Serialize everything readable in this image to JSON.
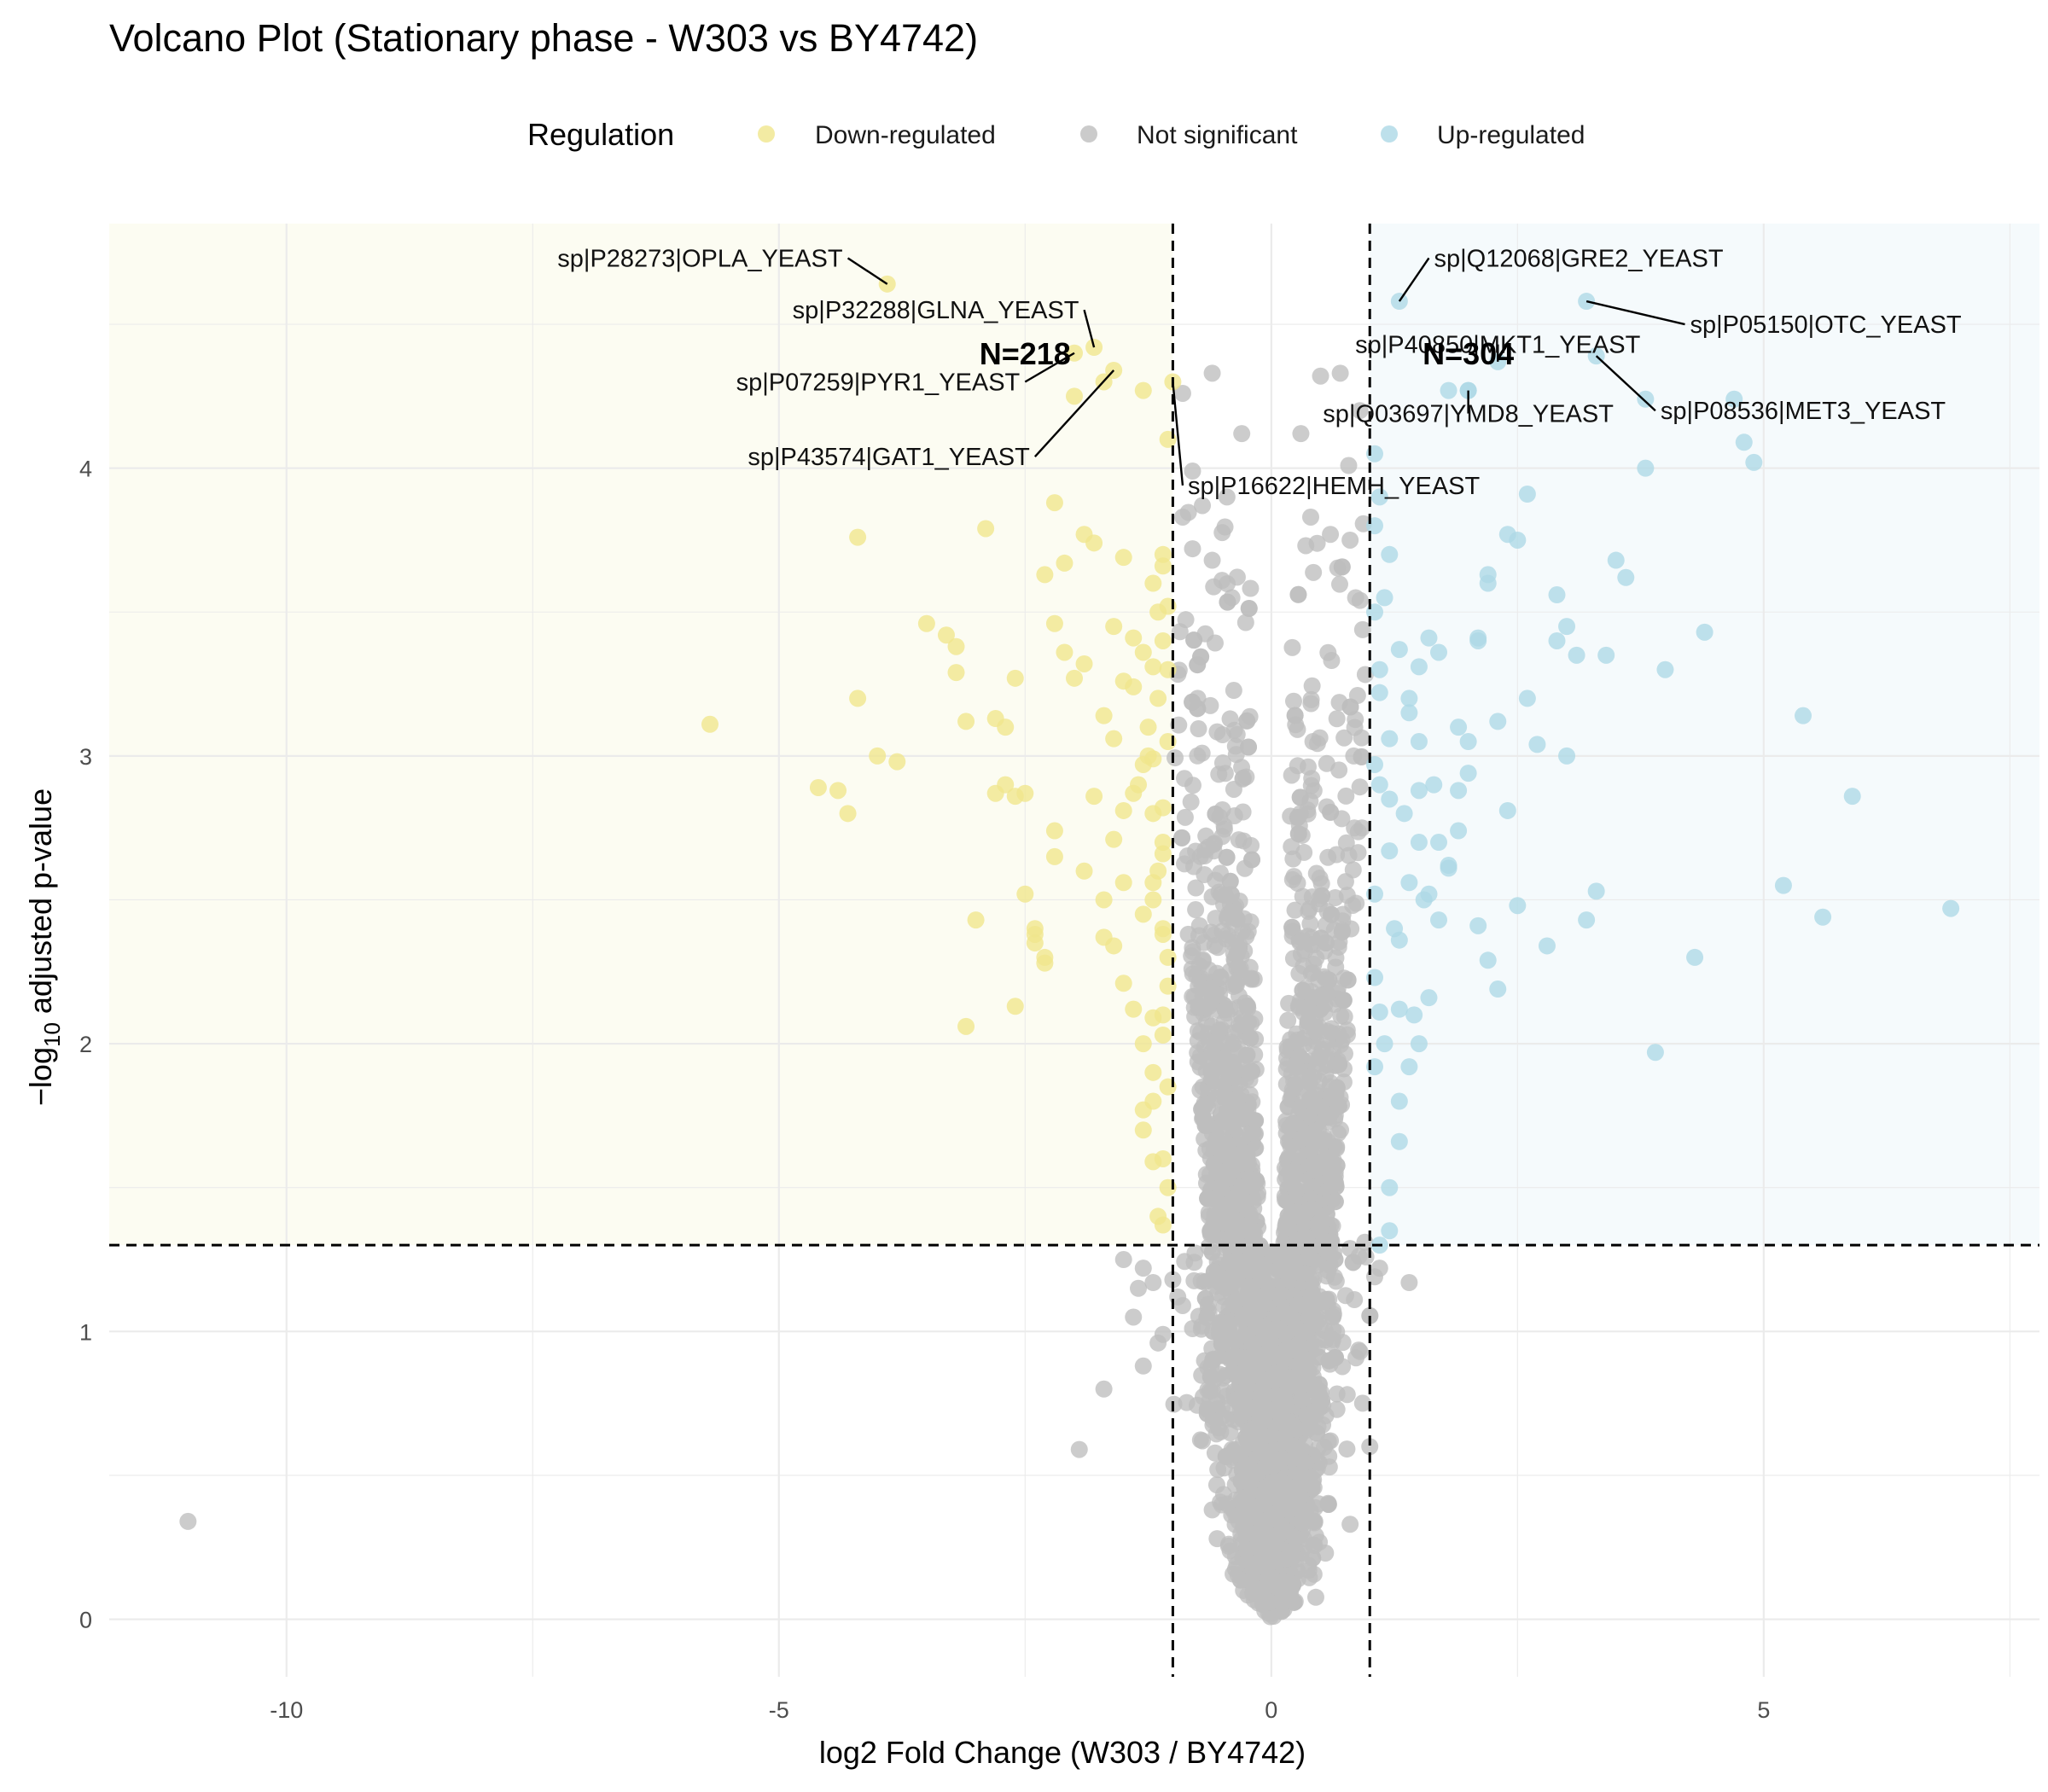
{
  "chart_data": {
    "type": "scatter",
    "title": "Volcano Plot (Stationary phase - W303 vs BY4742)",
    "xlabel": "log2 Fold Change (W303 / BY4742)",
    "ylabel_prefix": "−log",
    "ylabel_sub": "10",
    "ylabel_suffix": " adjusted p-value",
    "xlim": [
      -11.8,
      7.8
    ],
    "ylim": [
      -0.2,
      4.85
    ],
    "x_ticks": [
      -10,
      -5,
      0,
      5
    ],
    "x_tick_labels": [
      "-10",
      "-5",
      "0",
      "5"
    ],
    "y_ticks": [
      0,
      1,
      2,
      3,
      4
    ],
    "y_tick_labels": [
      "0",
      "1",
      "2",
      "3",
      "4"
    ],
    "grid": true,
    "legend": {
      "title": "Regulation",
      "placement": "top",
      "entries": [
        {
          "label": "Down-regulated",
          "color": "#f0e68c"
        },
        {
          "label": "Not significant",
          "color": "#bebebe"
        },
        {
          "label": "Up-regulated",
          "color": "#add8e6"
        }
      ]
    },
    "thresholds": {
      "fc_low": -1,
      "fc_high": 1,
      "padj": 1.3
    },
    "shade_colors": {
      "down": "#fcfcf2",
      "up": "#f5fafc"
    },
    "counts": [
      {
        "label": "N=218",
        "x": -2.5,
        "y": 4.4
      },
      {
        "label": "N=304",
        "x": 2.0,
        "y": 4.4
      }
    ],
    "labels": [
      {
        "text": "sp|P28273|OPLA_YEAST",
        "x": -3.9,
        "y": 4.64,
        "lx": -4.3,
        "ly": 4.73
      },
      {
        "text": "sp|P32288|GLNA_YEAST",
        "x": -1.8,
        "y": 4.42,
        "lx": -1.9,
        "ly": 4.55
      },
      {
        "text": "sp|P07259|PYR1_YEAST",
        "x": -2.0,
        "y": 4.4,
        "lx": -2.5,
        "ly": 4.3
      },
      {
        "text": "sp|P43574|GAT1_YEAST",
        "x": -1.6,
        "y": 4.34,
        "lx": -2.4,
        "ly": 4.04
      },
      {
        "text": "sp|P16622|HEMH_YEAST",
        "x": -1.0,
        "y": 4.3,
        "lx": -0.9,
        "ly": 3.94
      },
      {
        "text": "sp|Q12068|GRE2_YEAST",
        "x": 1.3,
        "y": 4.58,
        "lx": 1.6,
        "ly": 4.73
      },
      {
        "text": "sp|P40850|MKT1_YEAST",
        "x": 2.3,
        "y": 4.37,
        "lx": 2.3,
        "ly": 4.43
      },
      {
        "text": "sp|Q03697|YMD8_YEAST",
        "x": 2.0,
        "y": 4.27,
        "lx": 2.0,
        "ly": 4.19
      },
      {
        "text": "sp|P05150|OTC_YEAST",
        "x": 3.2,
        "y": 4.58,
        "lx": 4.2,
        "ly": 4.5
      },
      {
        "text": "sp|P08536|MET3_YEAST",
        "x": 3.3,
        "y": 4.39,
        "lx": 3.9,
        "ly": 4.2
      }
    ],
    "series": [
      {
        "name": "Down-regulated",
        "color": "#f0e68c",
        "x": [
          -3.9,
          -1.8,
          -2.0,
          -1.6,
          -1.0,
          -5.7,
          -4.6,
          -4.4,
          -4.3,
          -4.2,
          -4.2,
          -4.0,
          -3.8,
          -3.5,
          -3.3,
          -3.2,
          -3.2,
          -3.1,
          -3.1,
          -3.0,
          -2.9,
          -2.8,
          -2.8,
          -2.7,
          -2.7,
          -2.6,
          -2.6,
          -2.5,
          -2.5,
          -2.4,
          -2.4,
          -2.3,
          -2.3,
          -2.2,
          -2.2,
          -2.2,
          -2.1,
          -2.1,
          -2.0,
          -2.0,
          -1.9,
          -1.9,
          -1.8,
          -1.8,
          -1.7,
          -1.7,
          -1.7,
          -1.6,
          -1.6,
          -1.6,
          -1.5,
          -1.5,
          -1.5,
          -1.5,
          -1.4,
          -1.4,
          -1.4,
          -1.3,
          -1.3,
          -1.3,
          -1.3,
          -1.2,
          -1.2,
          -1.2,
          -1.2,
          -1.2,
          -1.1,
          -1.1,
          -1.1,
          -1.1,
          -1.1,
          -1.1,
          -1.05,
          -1.05,
          -1.05,
          -1.05,
          -2.6,
          -2.4,
          -2.3,
          -2.2,
          -1.9,
          -1.7,
          -1.6,
          -1.5,
          -1.4,
          -1.3,
          -1.25,
          -1.2,
          -1.15,
          -1.1,
          -1.05,
          -1.3,
          -1.2,
          -1.1,
          -1.05,
          -1.15,
          -1.35,
          -1.1,
          -1.2,
          -1.05,
          -1.15,
          -1.25,
          -1.1,
          -1.2,
          -1.3,
          -1.1,
          -1.05,
          -1.15,
          -1.2,
          -1.1
        ],
        "y": [
          4.64,
          4.42,
          4.4,
          4.34,
          4.3,
          3.11,
          2.89,
          2.88,
          2.8,
          3.2,
          3.76,
          3.0,
          2.98,
          3.46,
          3.42,
          3.38,
          3.29,
          3.12,
          2.06,
          2.43,
          3.79,
          3.13,
          2.87,
          2.9,
          3.1,
          2.86,
          3.27,
          2.87,
          2.52,
          2.35,
          2.4,
          2.3,
          2.28,
          2.74,
          3.46,
          2.65,
          3.36,
          3.67,
          3.27,
          4.25,
          3.77,
          2.6,
          3.74,
          2.86,
          4.3,
          2.5,
          2.37,
          3.06,
          2.34,
          2.71,
          2.56,
          3.26,
          2.81,
          2.21,
          2.12,
          3.41,
          2.87,
          1.77,
          2.45,
          2.97,
          4.27,
          1.59,
          2.09,
          3.31,
          2.56,
          2.99,
          2.38,
          2.03,
          3.66,
          2.66,
          1.37,
          2.82,
          1.85,
          3.52,
          4.1,
          3.05,
          2.13,
          2.38,
          3.63,
          3.88,
          3.32,
          3.14,
          3.45,
          3.69,
          3.24,
          3.36,
          3.0,
          2.8,
          2.6,
          2.4,
          2.2,
          2.0,
          1.8,
          1.6,
          1.5,
          1.4,
          2.9,
          2.7,
          2.5,
          2.3,
          3.2,
          3.1,
          2.1,
          1.9,
          1.7,
          3.4,
          3.3,
          3.5,
          3.6,
          3.7
        ]
      },
      {
        "name": "Up-regulated",
        "color": "#add8e6",
        "x": [
          1.3,
          2.3,
          2.0,
          3.2,
          3.3,
          6.9,
          5.9,
          5.6,
          5.4,
          5.2,
          4.9,
          4.8,
          4.7,
          4.4,
          4.3,
          4.0,
          3.9,
          3.8,
          3.8,
          3.6,
          3.5,
          3.4,
          3.3,
          3.2,
          3.1,
          3.0,
          3.0,
          2.9,
          2.9,
          2.8,
          2.7,
          2.6,
          2.5,
          2.5,
          2.4,
          2.3,
          2.3,
          2.2,
          2.2,
          2.1,
          2.1,
          2.0,
          2.0,
          1.9,
          1.9,
          1.8,
          1.8,
          1.7,
          1.7,
          1.6,
          1.6,
          1.5,
          1.5,
          1.5,
          1.4,
          1.4,
          1.3,
          1.3,
          1.3,
          1.2,
          1.2,
          1.2,
          1.1,
          1.1,
          1.1,
          1.05,
          1.05,
          1.05,
          1.05,
          1.05,
          1.1,
          1.2,
          1.3,
          1.4,
          1.5,
          1.6,
          1.7,
          1.8,
          1.9,
          2.0,
          2.1,
          2.2,
          2.4,
          2.6,
          1.15,
          1.25,
          1.35,
          1.1,
          1.05,
          1.2,
          1.3,
          1.45,
          1.55,
          1.65,
          1.1,
          1.2,
          1.05,
          1.15,
          1.4,
          1.5
        ],
        "y": [
          4.58,
          4.37,
          4.27,
          4.58,
          4.39,
          2.47,
          2.86,
          2.44,
          3.14,
          2.55,
          4.02,
          4.09,
          4.24,
          3.43,
          2.3,
          3.3,
          1.97,
          4.0,
          4.24,
          3.62,
          3.68,
          3.35,
          2.53,
          2.43,
          3.35,
          3.0,
          3.45,
          3.56,
          3.4,
          2.34,
          3.04,
          3.2,
          3.75,
          2.48,
          2.81,
          2.19,
          3.12,
          2.29,
          3.63,
          2.41,
          3.4,
          2.94,
          4.27,
          3.1,
          2.74,
          2.61,
          4.27,
          3.36,
          2.7,
          2.52,
          3.41,
          3.05,
          3.31,
          2.88,
          2.56,
          3.15,
          3.37,
          2.12,
          2.36,
          3.06,
          2.67,
          2.85,
          3.22,
          2.9,
          2.11,
          2.52,
          2.23,
          1.92,
          2.97,
          3.5,
          1.3,
          1.35,
          1.66,
          1.92,
          2.0,
          2.16,
          2.43,
          2.62,
          2.88,
          3.05,
          3.41,
          3.6,
          3.77,
          3.91,
          2.0,
          2.4,
          2.8,
          3.3,
          3.8,
          1.5,
          1.8,
          2.1,
          2.5,
          2.9,
          3.9,
          3.7,
          4.05,
          3.55,
          3.2,
          2.7
        ]
      },
      {
        "name": "Not significant",
        "color": "#bebebe",
        "x": [
          -11.0,
          -1.95,
          -1.7,
          -1.5,
          -1.4,
          -1.35,
          -1.3,
          -1.3,
          -1.2,
          -1.15,
          -1.1,
          -1.0,
          -0.95,
          -0.9,
          -0.8,
          -0.7,
          -0.6,
          -0.55,
          -0.4,
          -0.35,
          -0.3,
          0.3,
          0.45,
          0.55,
          0.6,
          0.8,
          0.9,
          0.95,
          1.0,
          1.05,
          1.1,
          1.4,
          -0.9,
          -0.6,
          -0.3,
          0.3,
          0.5,
          0.7,
          0.9,
          -0.8,
          -0.7,
          -0.9,
          -0.8,
          -0.6,
          -0.5,
          -0.4,
          0.4,
          0.6,
          0.8
        ],
        "y": [
          0.34,
          0.59,
          0.8,
          1.25,
          1.05,
          1.15,
          0.88,
          1.22,
          1.17,
          0.96,
          0.99,
          1.18,
          1.12,
          1.09,
          1.01,
          0.62,
          0.38,
          0.28,
          0.59,
          0.19,
          0.48,
          0.56,
          0.29,
          0.23,
          0.62,
          0.33,
          0.93,
          1.31,
          0.6,
          1.19,
          1.22,
          1.17,
          4.26,
          4.33,
          4.12,
          4.12,
          4.32,
          4.33,
          4.2,
          3.99,
          3.87,
          3.83,
          3.72,
          3.68,
          3.61,
          3.55,
          3.83,
          3.77,
          3.75
        ],
        "cloud": true
      }
    ]
  }
}
